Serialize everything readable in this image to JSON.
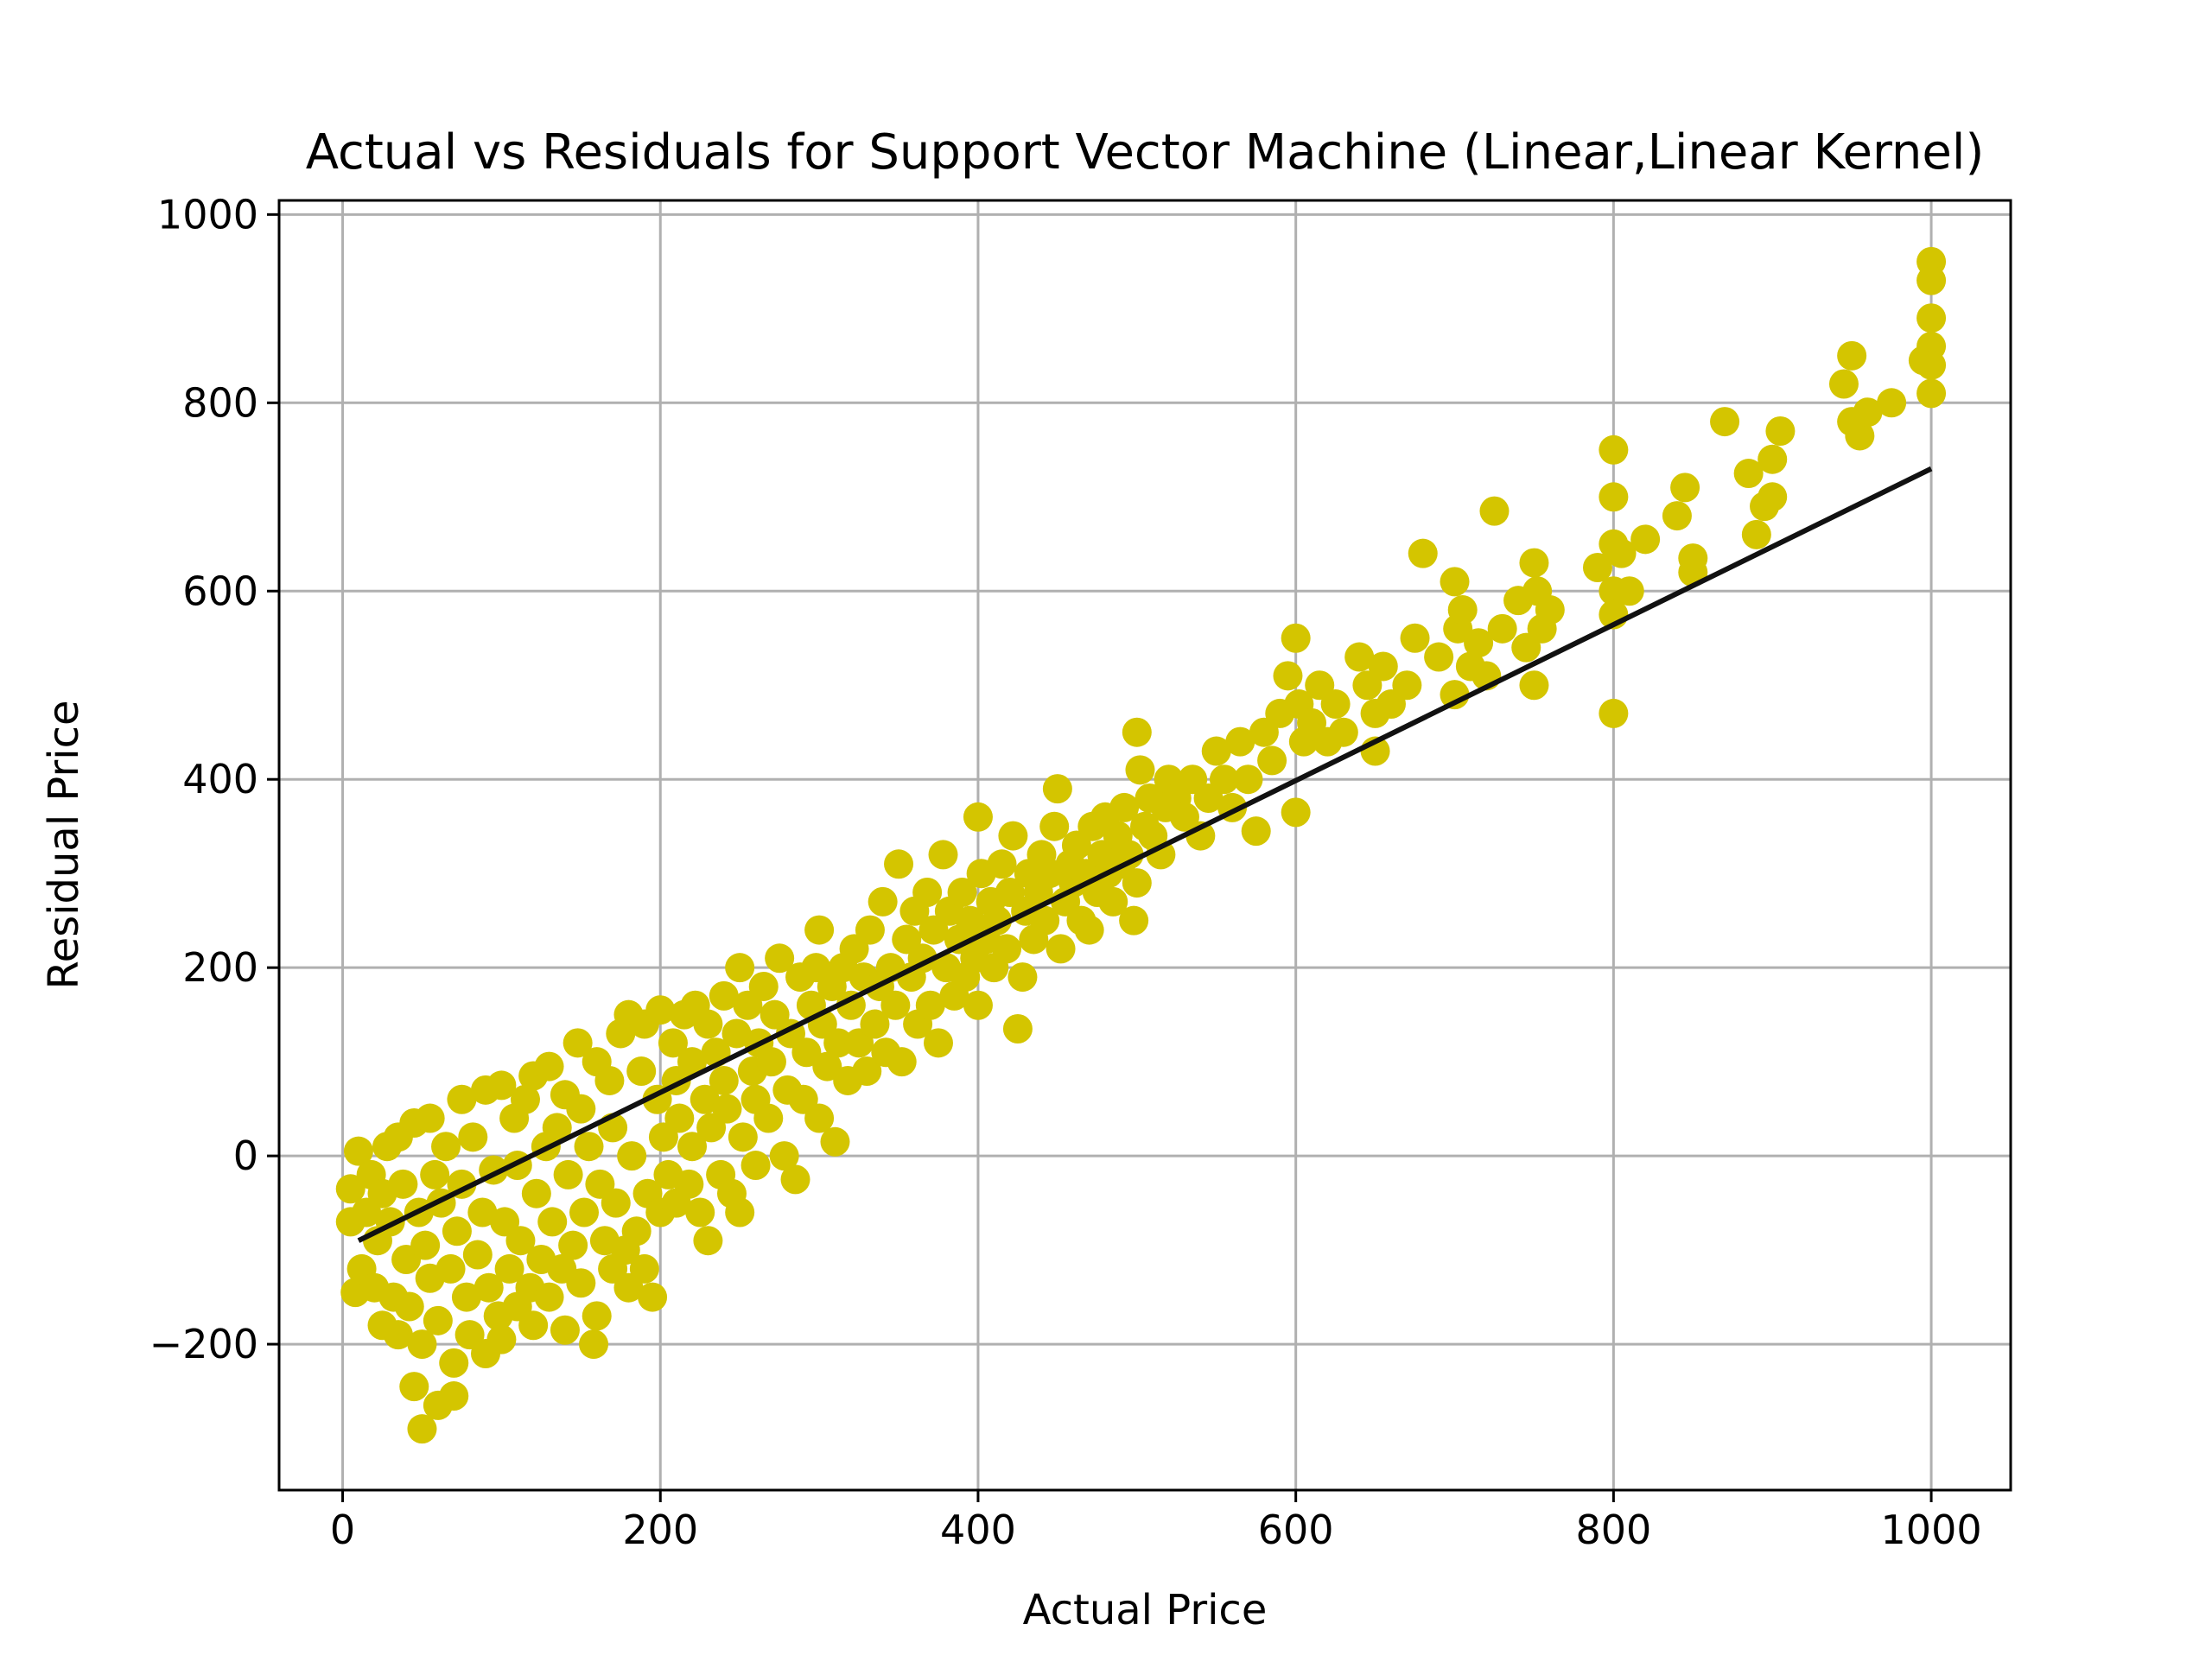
{
  "chart_data": {
    "type": "scatter",
    "title": "Actual vs Residuals for Support Vector Machine (Linear,Linear Kernel)",
    "xlabel": "Actual Price",
    "ylabel": "Residual Price",
    "xlim": [
      -40,
      1050
    ],
    "ylim": [
      -355,
      1015
    ],
    "x_ticks": [
      0,
      200,
      400,
      600,
      800,
      1000
    ],
    "x_tick_labels": [
      "0",
      "200",
      "400",
      "600",
      "800",
      "1000"
    ],
    "y_ticks": [
      -200,
      0,
      200,
      400,
      600,
      800,
      1000
    ],
    "y_tick_labels": [
      "−200",
      "0",
      "200",
      "400",
      "600",
      "800",
      "1000"
    ],
    "grid": true,
    "colors": {
      "points": "#d4c500",
      "fit_line": "#111111",
      "grid": "#b0b0b0",
      "axes": "#000000"
    },
    "fit_line": {
      "x": [
        10,
        1000
      ],
      "y": [
        -90,
        730
      ]
    },
    "series": [
      {
        "points": [
          [
            5,
            -35
          ],
          [
            5,
            -70
          ],
          [
            8,
            -145
          ],
          [
            10,
            5
          ],
          [
            12,
            -120
          ],
          [
            15,
            -60
          ],
          [
            18,
            -20
          ],
          [
            20,
            -140
          ],
          [
            22,
            -90
          ],
          [
            25,
            -180
          ],
          [
            25,
            -40
          ],
          [
            28,
            10
          ],
          [
            30,
            -70
          ],
          [
            32,
            -150
          ],
          [
            35,
            -190
          ],
          [
            35,
            20
          ],
          [
            38,
            -30
          ],
          [
            40,
            -110
          ],
          [
            42,
            -160
          ],
          [
            45,
            -245
          ],
          [
            45,
            35
          ],
          [
            48,
            -60
          ],
          [
            50,
            -290
          ],
          [
            50,
            -200
          ],
          [
            52,
            -95
          ],
          [
            55,
            -130
          ],
          [
            55,
            40
          ],
          [
            58,
            -20
          ],
          [
            60,
            -175
          ],
          [
            60,
            -265
          ],
          [
            62,
            -50
          ],
          [
            65,
            10
          ],
          [
            68,
            -120
          ],
          [
            70,
            -220
          ],
          [
            70,
            -255
          ],
          [
            72,
            -80
          ],
          [
            75,
            60
          ],
          [
            75,
            -30
          ],
          [
            78,
            -150
          ],
          [
            80,
            -190
          ],
          [
            82,
            20
          ],
          [
            85,
            -105
          ],
          [
            88,
            -60
          ],
          [
            90,
            -210
          ],
          [
            90,
            70
          ],
          [
            92,
            -140
          ],
          [
            95,
            -15
          ],
          [
            98,
            -170
          ],
          [
            100,
            -195
          ],
          [
            100,
            75
          ],
          [
            102,
            -70
          ],
          [
            105,
            -120
          ],
          [
            108,
            40
          ],
          [
            110,
            -160
          ],
          [
            110,
            -10
          ],
          [
            112,
            -90
          ],
          [
            115,
            60
          ],
          [
            118,
            -140
          ],
          [
            120,
            -180
          ],
          [
            120,
            85
          ],
          [
            122,
            -40
          ],
          [
            125,
            -110
          ],
          [
            128,
            10
          ],
          [
            130,
            -150
          ],
          [
            130,
            95
          ],
          [
            132,
            -70
          ],
          [
            135,
            30
          ],
          [
            138,
            -120
          ],
          [
            140,
            -185
          ],
          [
            140,
            65
          ],
          [
            142,
            -20
          ],
          [
            145,
            -95
          ],
          [
            148,
            120
          ],
          [
            150,
            -135
          ],
          [
            150,
            50
          ],
          [
            152,
            -60
          ],
          [
            155,
            10
          ],
          [
            158,
            -200
          ],
          [
            160,
            -170
          ],
          [
            160,
            100
          ],
          [
            162,
            -30
          ],
          [
            165,
            -90
          ],
          [
            168,
            80
          ],
          [
            170,
            -120
          ],
          [
            170,
            30
          ],
          [
            172,
            -50
          ],
          [
            175,
            130
          ],
          [
            178,
            -100
          ],
          [
            180,
            -140
          ],
          [
            180,
            150
          ],
          [
            182,
            0
          ],
          [
            185,
            -80
          ],
          [
            188,
            90
          ],
          [
            190,
            -120
          ],
          [
            190,
            140
          ],
          [
            192,
            -40
          ],
          [
            195,
            -150
          ],
          [
            198,
            60
          ],
          [
            200,
            -60
          ],
          [
            200,
            155
          ],
          [
            202,
            20
          ],
          [
            205,
            -20
          ],
          [
            208,
            120
          ],
          [
            210,
            -50
          ],
          [
            210,
            80
          ],
          [
            212,
            40
          ],
          [
            215,
            150
          ],
          [
            218,
            -30
          ],
          [
            220,
            100
          ],
          [
            220,
            10
          ],
          [
            222,
            160
          ],
          [
            225,
            -60
          ],
          [
            228,
            60
          ],
          [
            230,
            -90
          ],
          [
            230,
            140
          ],
          [
            232,
            30
          ],
          [
            235,
            110
          ],
          [
            238,
            -20
          ],
          [
            240,
            80
          ],
          [
            240,
            170
          ],
          [
            242,
            50
          ],
          [
            245,
            -40
          ],
          [
            248,
            130
          ],
          [
            250,
            -60
          ],
          [
            250,
            200
          ],
          [
            252,
            20
          ],
          [
            255,
            160
          ],
          [
            258,
            90
          ],
          [
            260,
            60
          ],
          [
            260,
            -10
          ],
          [
            262,
            120
          ],
          [
            265,
            180
          ],
          [
            268,
            40
          ],
          [
            270,
            100
          ],
          [
            272,
            150
          ],
          [
            275,
            210
          ],
          [
            278,
            0
          ],
          [
            280,
            70
          ],
          [
            282,
            130
          ],
          [
            285,
            -25
          ],
          [
            288,
            190
          ],
          [
            290,
            60
          ],
          [
            292,
            110
          ],
          [
            295,
            160
          ],
          [
            298,
            200
          ],
          [
            300,
            240
          ],
          [
            300,
            40
          ],
          [
            302,
            140
          ],
          [
            305,
            95
          ],
          [
            308,
            180
          ],
          [
            310,
            15
          ],
          [
            312,
            120
          ],
          [
            315,
            200
          ],
          [
            318,
            80
          ],
          [
            320,
            160
          ],
          [
            322,
            220
          ],
          [
            325,
            120
          ],
          [
            328,
            190
          ],
          [
            330,
            90
          ],
          [
            332,
            240
          ],
          [
            335,
            140
          ],
          [
            338,
            180
          ],
          [
            340,
            270
          ],
          [
            342,
            110
          ],
          [
            345,
            200
          ],
          [
            348,
            160
          ],
          [
            350,
            310
          ],
          [
            352,
            100
          ],
          [
            355,
            230
          ],
          [
            358,
            190
          ],
          [
            360,
            260
          ],
          [
            362,
            140
          ],
          [
            365,
            210
          ],
          [
            368,
            280
          ],
          [
            370,
            160
          ],
          [
            372,
            240
          ],
          [
            375,
            120
          ],
          [
            378,
            320
          ],
          [
            380,
            200
          ],
          [
            382,
            260
          ],
          [
            385,
            170
          ],
          [
            388,
            230
          ],
          [
            390,
            280
          ],
          [
            392,
            190
          ],
          [
            395,
            250
          ],
          [
            398,
            210
          ],
          [
            400,
            360
          ],
          [
            400,
            160
          ],
          [
            402,
            300
          ],
          [
            405,
            230
          ],
          [
            408,
            270
          ],
          [
            410,
            200
          ],
          [
            412,
            250
          ],
          [
            415,
            310
          ],
          [
            418,
            220
          ],
          [
            420,
            280
          ],
          [
            422,
            340
          ],
          [
            425,
            135
          ],
          [
            428,
            190
          ],
          [
            430,
            260
          ],
          [
            432,
            300
          ],
          [
            435,
            230
          ],
          [
            438,
            280
          ],
          [
            440,
            320
          ],
          [
            442,
            250
          ],
          [
            445,
            300
          ],
          [
            448,
            350
          ],
          [
            450,
            390
          ],
          [
            452,
            220
          ],
          [
            455,
            270
          ],
          [
            458,
            310
          ],
          [
            460,
            290
          ],
          [
            462,
            330
          ],
          [
            465,
            250
          ],
          [
            468,
            300
          ],
          [
            470,
            240
          ],
          [
            472,
            350
          ],
          [
            475,
            280
          ],
          [
            478,
            320
          ],
          [
            480,
            360
          ],
          [
            482,
            300
          ],
          [
            485,
            270
          ],
          [
            488,
            340
          ],
          [
            490,
            310
          ],
          [
            492,
            370
          ],
          [
            495,
            320
          ],
          [
            498,
            250
          ],
          [
            500,
            450
          ],
          [
            500,
            290
          ],
          [
            502,
            410
          ],
          [
            505,
            350
          ],
          [
            508,
            380
          ],
          [
            510,
            340
          ],
          [
            515,
            320
          ],
          [
            518,
            370
          ],
          [
            520,
            400
          ],
          [
            525,
            380
          ],
          [
            530,
            360
          ],
          [
            535,
            400
          ],
          [
            540,
            340
          ],
          [
            545,
            380
          ],
          [
            550,
            430
          ],
          [
            555,
            400
          ],
          [
            560,
            370
          ],
          [
            565,
            440
          ],
          [
            570,
            400
          ],
          [
            575,
            345
          ],
          [
            580,
            450
          ],
          [
            585,
            420
          ],
          [
            590,
            470
          ],
          [
            595,
            510
          ],
          [
            600,
            550
          ],
          [
            600,
            365
          ],
          [
            602,
            480
          ],
          [
            605,
            440
          ],
          [
            610,
            460
          ],
          [
            615,
            500
          ],
          [
            620,
            440
          ],
          [
            625,
            480
          ],
          [
            630,
            450
          ],
          [
            640,
            530
          ],
          [
            645,
            500
          ],
          [
            650,
            470
          ],
          [
            650,
            430
          ],
          [
            655,
            520
          ],
          [
            660,
            480
          ],
          [
            670,
            500
          ],
          [
            675,
            550
          ],
          [
            680,
            640
          ],
          [
            690,
            530
          ],
          [
            700,
            610
          ],
          [
            700,
            490
          ],
          [
            702,
            560
          ],
          [
            705,
            580
          ],
          [
            710,
            520
          ],
          [
            715,
            545
          ],
          [
            720,
            510
          ],
          [
            725,
            685
          ],
          [
            730,
            560
          ],
          [
            740,
            590
          ],
          [
            745,
            540
          ],
          [
            750,
            630
          ],
          [
            750,
            500
          ],
          [
            752,
            600
          ],
          [
            755,
            560
          ],
          [
            760,
            580
          ],
          [
            790,
            625
          ],
          [
            800,
            750
          ],
          [
            800,
            700
          ],
          [
            800,
            650
          ],
          [
            800,
            600
          ],
          [
            800,
            575
          ],
          [
            800,
            470
          ],
          [
            805,
            640
          ],
          [
            810,
            600
          ],
          [
            820,
            655
          ],
          [
            840,
            680
          ],
          [
            845,
            710
          ],
          [
            850,
            635
          ],
          [
            850,
            620
          ],
          [
            870,
            780
          ],
          [
            885,
            725
          ],
          [
            890,
            660
          ],
          [
            895,
            690
          ],
          [
            900,
            740
          ],
          [
            900,
            700
          ],
          [
            905,
            770
          ],
          [
            945,
            820
          ],
          [
            950,
            850
          ],
          [
            950,
            780
          ],
          [
            955,
            765
          ],
          [
            960,
            790
          ],
          [
            975,
            800
          ],
          [
            995,
            845
          ],
          [
            1000,
            950
          ],
          [
            1000,
            930
          ],
          [
            1000,
            890
          ],
          [
            1000,
            860
          ],
          [
            1000,
            840
          ],
          [
            1000,
            810
          ]
        ]
      }
    ]
  }
}
